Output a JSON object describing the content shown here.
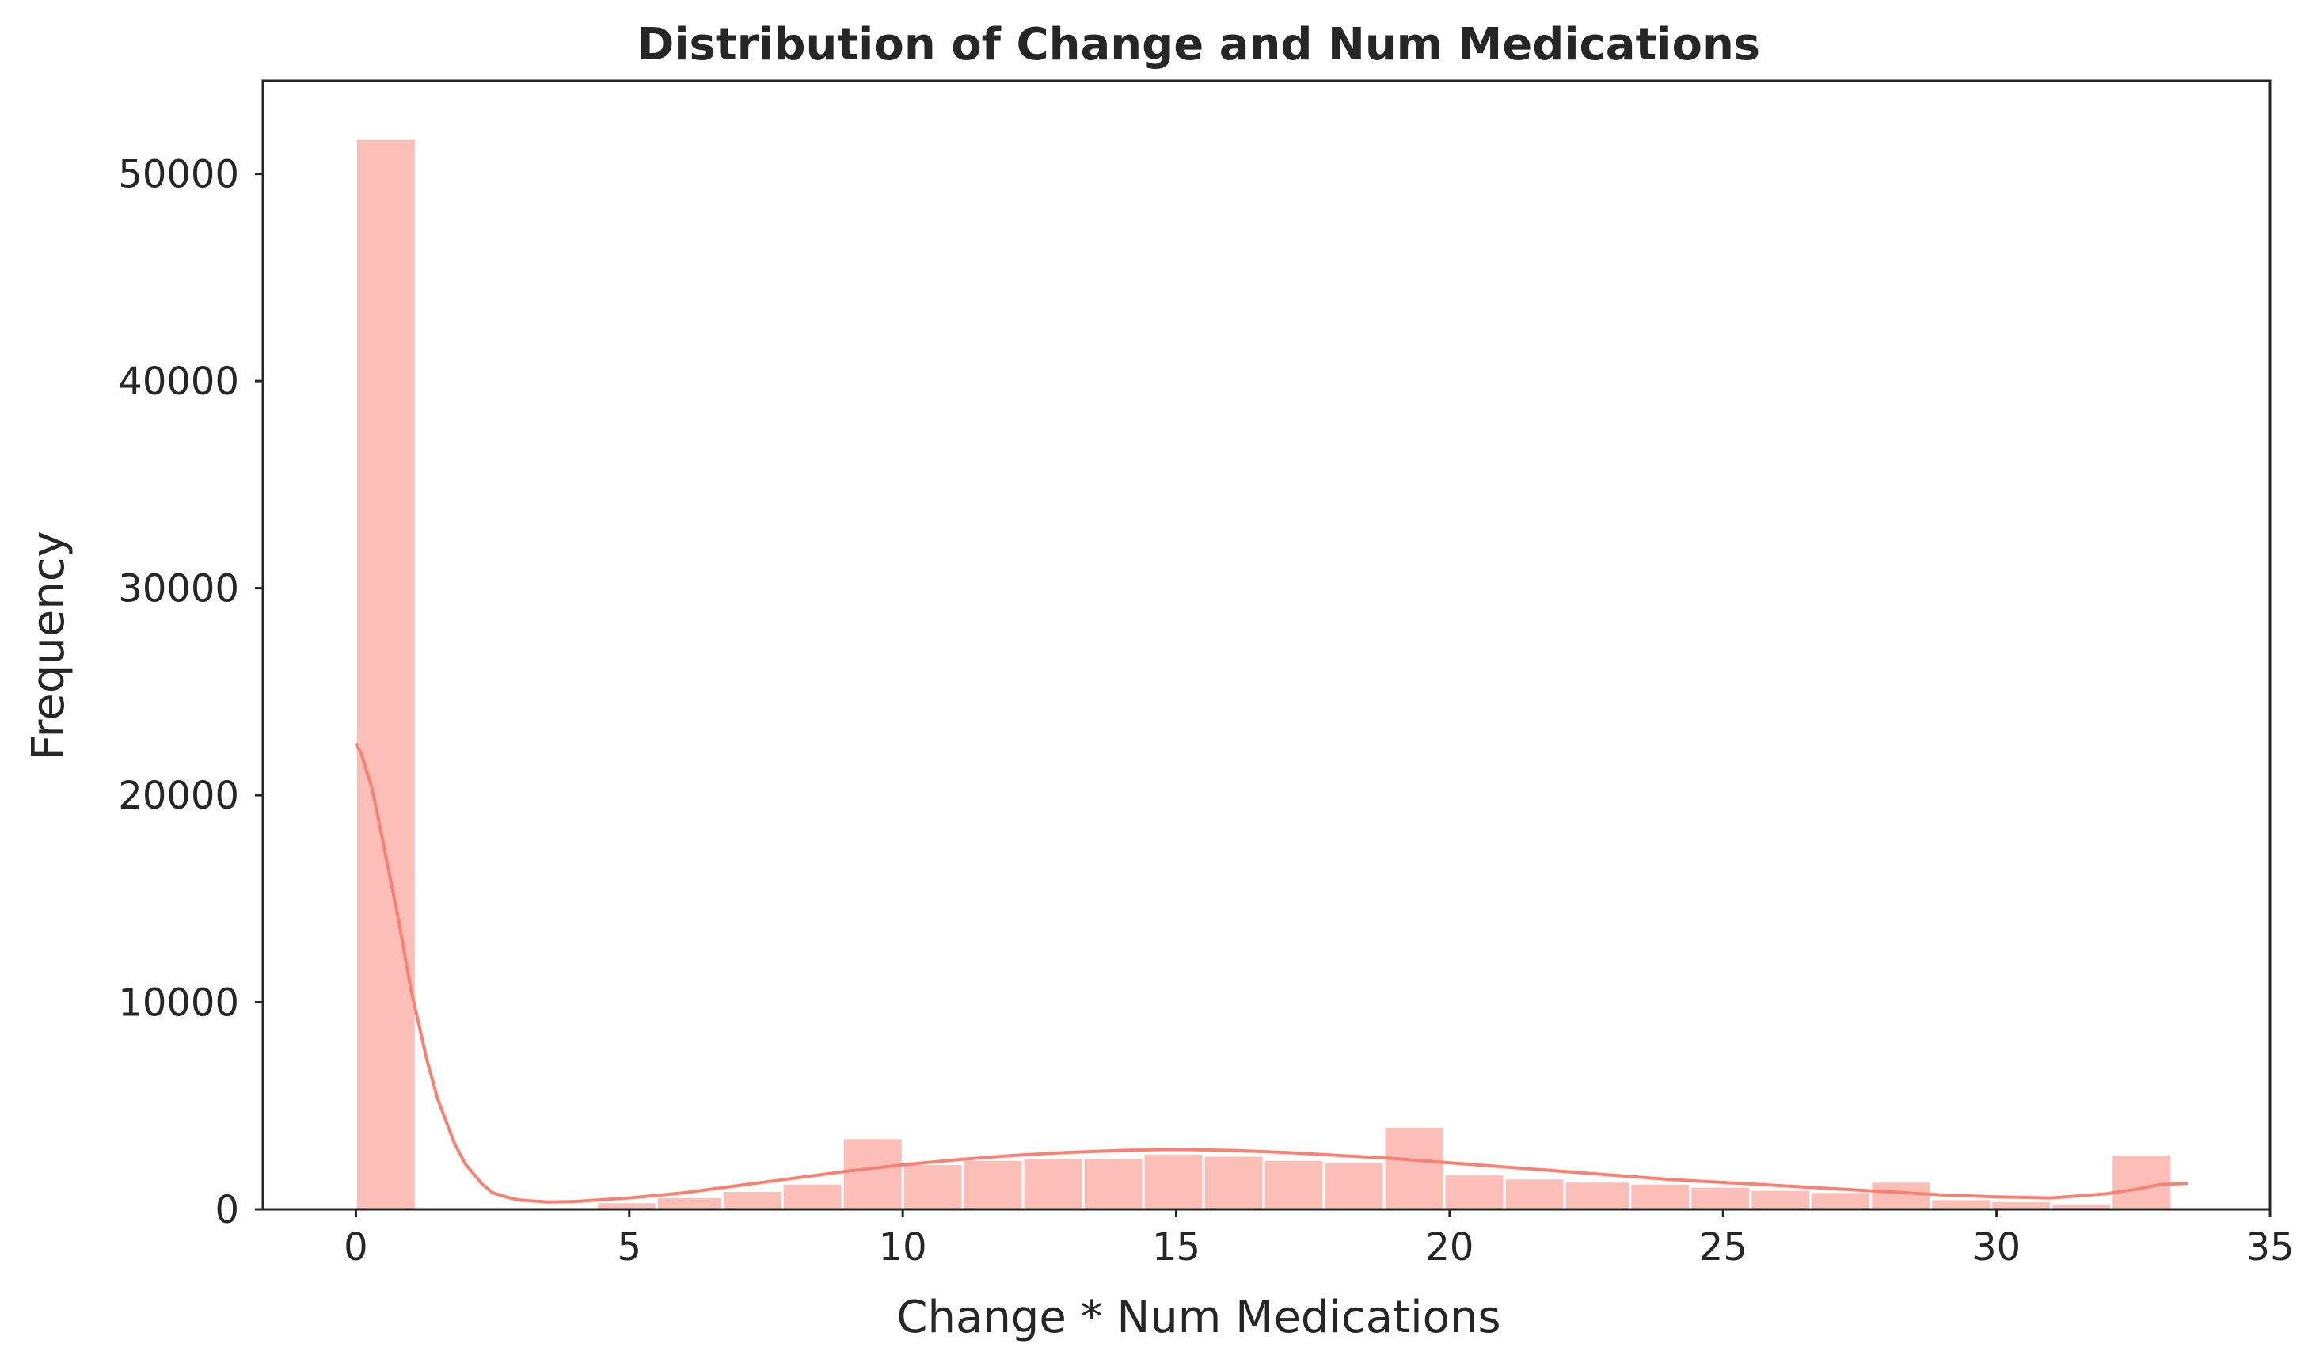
{
  "chart_data": {
    "type": "histogram",
    "title": "Distribution of Change and Num Medications",
    "xlabel": "Change * Num Medications",
    "ylabel": "Frequency",
    "xlim": [
      -1.7,
      35.0
    ],
    "ylim": [
      0,
      54500
    ],
    "xticks": [
      0,
      5,
      10,
      15,
      20,
      25,
      30,
      35
    ],
    "yticks": [
      0,
      10000,
      20000,
      30000,
      40000,
      50000
    ],
    "grid": false,
    "color": "#fa8072",
    "bins": [
      {
        "x0": 0.0,
        "x1": 1.1,
        "count": 51700
      },
      {
        "x0": 1.1,
        "x1": 2.2,
        "count": 0
      },
      {
        "x0": 2.2,
        "x1": 3.3,
        "count": 0
      },
      {
        "x0": 3.3,
        "x1": 4.4,
        "count": 80
      },
      {
        "x0": 4.4,
        "x1": 5.5,
        "count": 350
      },
      {
        "x0": 5.5,
        "x1": 6.7,
        "count": 600
      },
      {
        "x0": 6.7,
        "x1": 7.8,
        "count": 900
      },
      {
        "x0": 7.8,
        "x1": 8.9,
        "count": 1250
      },
      {
        "x0": 8.9,
        "x1": 10.0,
        "count": 3450
      },
      {
        "x0": 10.0,
        "x1": 11.1,
        "count": 2200
      },
      {
        "x0": 11.1,
        "x1": 12.2,
        "count": 2400
      },
      {
        "x0": 12.2,
        "x1": 13.3,
        "count": 2500
      },
      {
        "x0": 13.3,
        "x1": 14.4,
        "count": 2500
      },
      {
        "x0": 14.4,
        "x1": 15.5,
        "count": 2700
      },
      {
        "x0": 15.5,
        "x1": 16.6,
        "count": 2600
      },
      {
        "x0": 16.6,
        "x1": 17.7,
        "count": 2400
      },
      {
        "x0": 17.7,
        "x1": 18.8,
        "count": 2300
      },
      {
        "x0": 18.8,
        "x1": 19.9,
        "count": 4000
      },
      {
        "x0": 19.9,
        "x1": 21.0,
        "count": 1700
      },
      {
        "x0": 21.0,
        "x1": 22.1,
        "count": 1500
      },
      {
        "x0": 22.1,
        "x1": 23.3,
        "count": 1350
      },
      {
        "x0": 23.3,
        "x1": 24.4,
        "count": 1250
      },
      {
        "x0": 24.4,
        "x1": 25.5,
        "count": 1100
      },
      {
        "x0": 25.5,
        "x1": 26.6,
        "count": 950
      },
      {
        "x0": 26.6,
        "x1": 27.7,
        "count": 850
      },
      {
        "x0": 27.7,
        "x1": 28.8,
        "count": 1350
      },
      {
        "x0": 28.8,
        "x1": 29.9,
        "count": 500
      },
      {
        "x0": 29.9,
        "x1": 31.0,
        "count": 400
      },
      {
        "x0": 31.0,
        "x1": 32.1,
        "count": 300
      },
      {
        "x0": 32.1,
        "x1": 33.2,
        "count": 2650
      }
    ],
    "kde": {
      "x": [
        0.0,
        0.1,
        0.3,
        0.5,
        0.8,
        1.0,
        1.3,
        1.5,
        1.8,
        2.0,
        2.3,
        2.5,
        2.8,
        3.0,
        3.5,
        4.0,
        5.0,
        6.0,
        7.0,
        8.0,
        9.0,
        10.0,
        11.0,
        12.0,
        13.0,
        14.0,
        15.0,
        16.0,
        17.0,
        18.0,
        19.0,
        20.0,
        21.0,
        22.0,
        23.0,
        24.0,
        25.0,
        26.0,
        27.0,
        28.0,
        29.0,
        30.0,
        31.0,
        32.0,
        32.5,
        33.0,
        33.5
      ],
      "y": [
        22500,
        22000,
        20300,
        17700,
        13700,
        10700,
        7200,
        5300,
        3200,
        2200,
        1250,
        800,
        560,
        450,
        350,
        380,
        550,
        800,
        1150,
        1500,
        1850,
        2150,
        2400,
        2600,
        2750,
        2850,
        2900,
        2850,
        2750,
        2600,
        2450,
        2250,
        2050,
        1850,
        1650,
        1450,
        1300,
        1150,
        1000,
        850,
        700,
        600,
        550,
        750,
        950,
        1200,
        1250
      ]
    }
  }
}
